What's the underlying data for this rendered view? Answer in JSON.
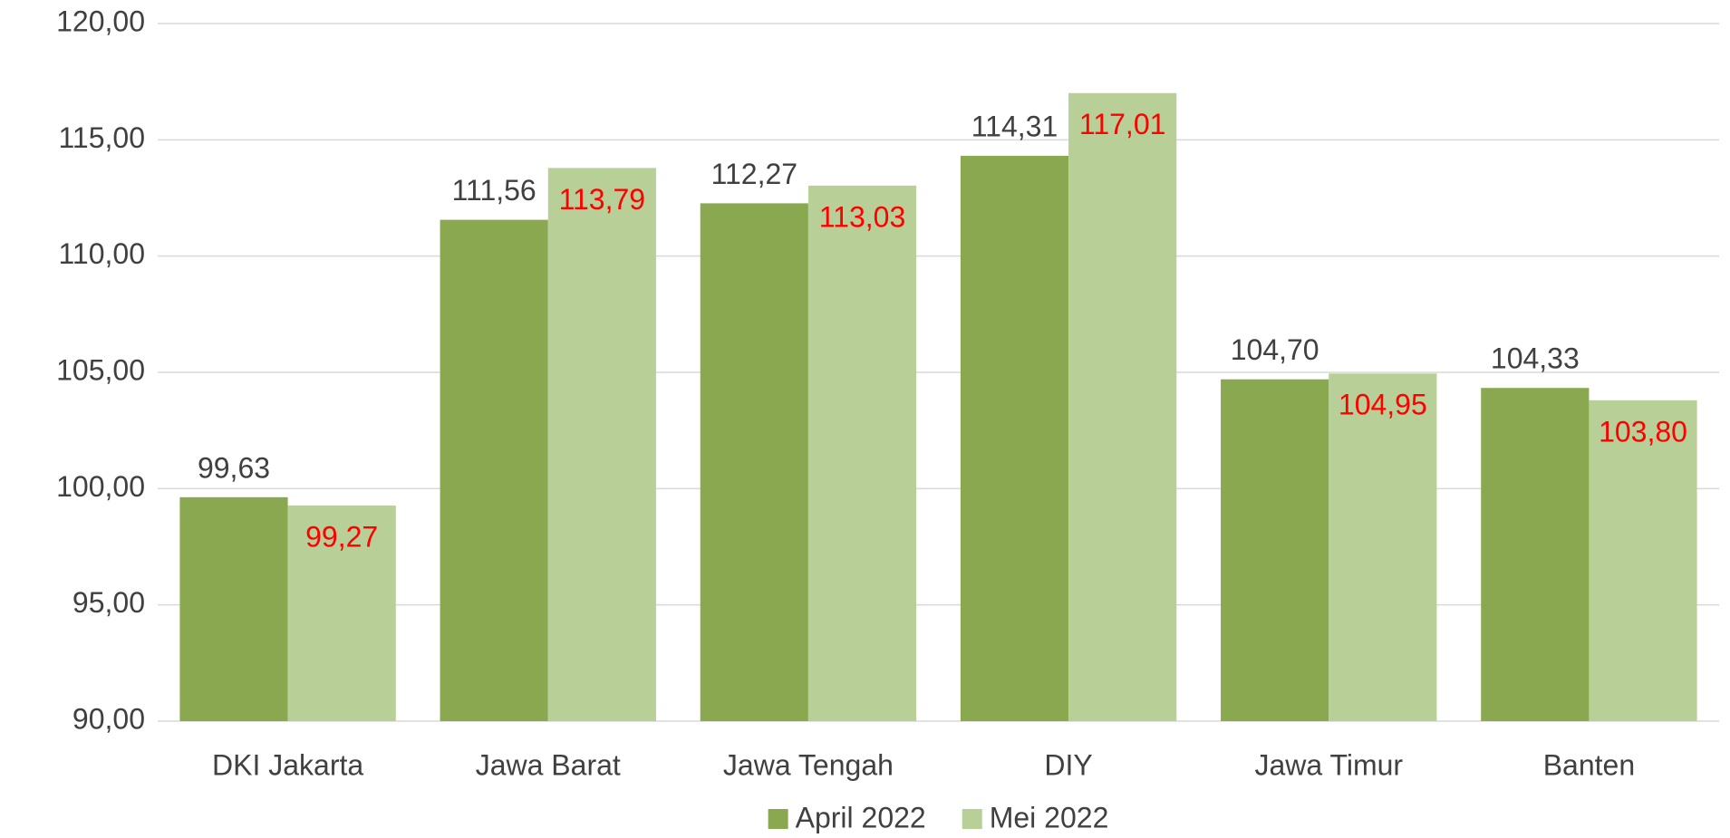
{
  "chart_data": {
    "type": "bar",
    "categories": [
      "DKI Jakarta",
      "Jawa Barat",
      "Jawa Tengah",
      "DIY",
      "Jawa Timur",
      "Banten"
    ],
    "series": [
      {
        "name": "April 2022",
        "color": "#8aa84f",
        "label_color": "#404040",
        "values": [
          99.63,
          111.56,
          112.27,
          114.31,
          104.7,
          104.33
        ],
        "value_labels": [
          "99,63",
          "111,56",
          "112,27",
          "114,31",
          "104,70",
          "104,33"
        ]
      },
      {
        "name": "Mei 2022",
        "color": "#b9cf98",
        "label_color": "#ff0000",
        "values": [
          99.27,
          113.79,
          113.03,
          117.01,
          104.95,
          103.8
        ],
        "value_labels": [
          "99,27",
          "113,79",
          "113,03",
          "117,01",
          "104,95",
          "103,80"
        ]
      }
    ],
    "ylim": [
      90,
      120
    ],
    "yticks": [
      {
        "value": 90,
        "label": "90,00"
      },
      {
        "value": 95,
        "label": "95,00"
      },
      {
        "value": 100,
        "label": "100,00"
      },
      {
        "value": 105,
        "label": "105,00"
      },
      {
        "value": 110,
        "label": "110,00"
      },
      {
        "value": 115,
        "label": "115,00"
      },
      {
        "value": 120,
        "label": "120,00"
      }
    ],
    "grid": true,
    "legend": "bottom"
  }
}
